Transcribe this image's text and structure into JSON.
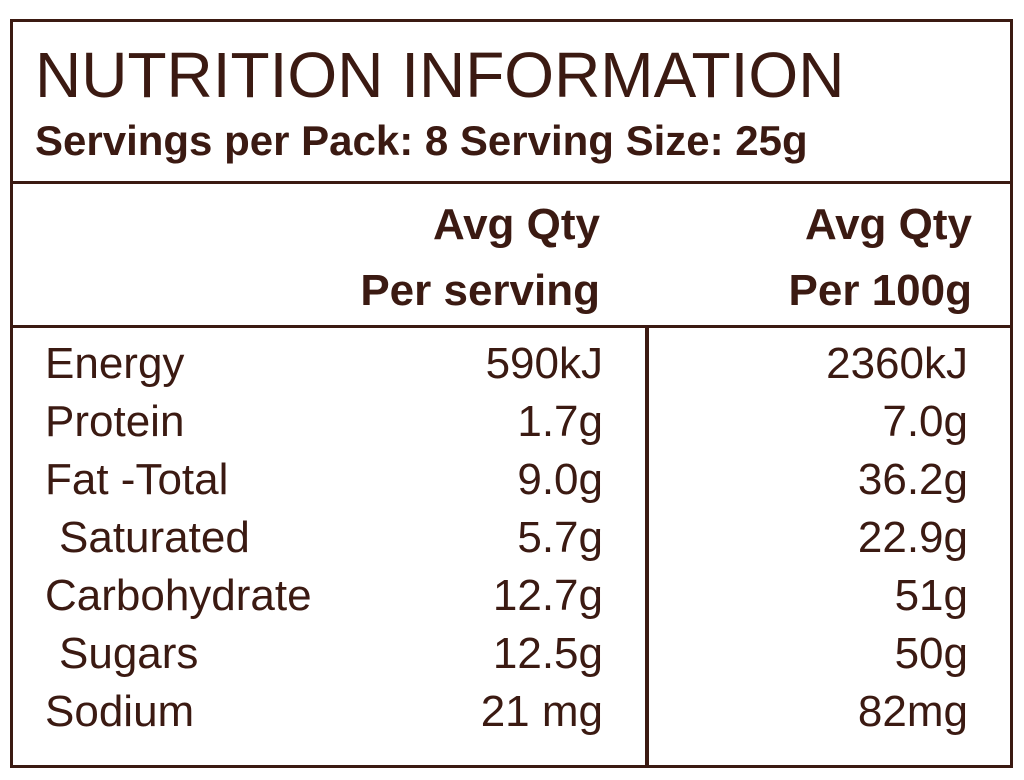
{
  "label": {
    "title": "NUTRITION INFORMATION",
    "subtitle": "Servings per Pack: 8  Serving Size: 25g",
    "columns": {
      "per_serving_line1": "Avg Qty",
      "per_serving_line2": "Per serving",
      "per_100g_line1": "Avg Qty",
      "per_100g_line2": "Per 100g"
    },
    "rows": [
      {
        "name": "Energy",
        "per_serving": "590kJ",
        "per_100g": "2360kJ"
      },
      {
        "name": "Protein",
        "per_serving": "1.7g",
        "per_100g": "7.0g"
      },
      {
        "name": "Fat -Total",
        "per_serving": "9.0g",
        "per_100g": "36.2g"
      },
      {
        "name": "Saturated",
        "per_serving": "5.7g",
        "per_100g": "22.9g"
      },
      {
        "name": "Carbohydrate",
        "per_serving": "12.7g",
        "per_100g": "51g"
      },
      {
        "name": "Sugars",
        "per_serving": "12.5g",
        "per_100g": "50g"
      },
      {
        "name": "Sodium",
        "per_serving": "21 mg",
        "per_100g": "82mg"
      }
    ]
  },
  "colors": {
    "ink": "#3b1a12",
    "background": "#ffffff"
  }
}
